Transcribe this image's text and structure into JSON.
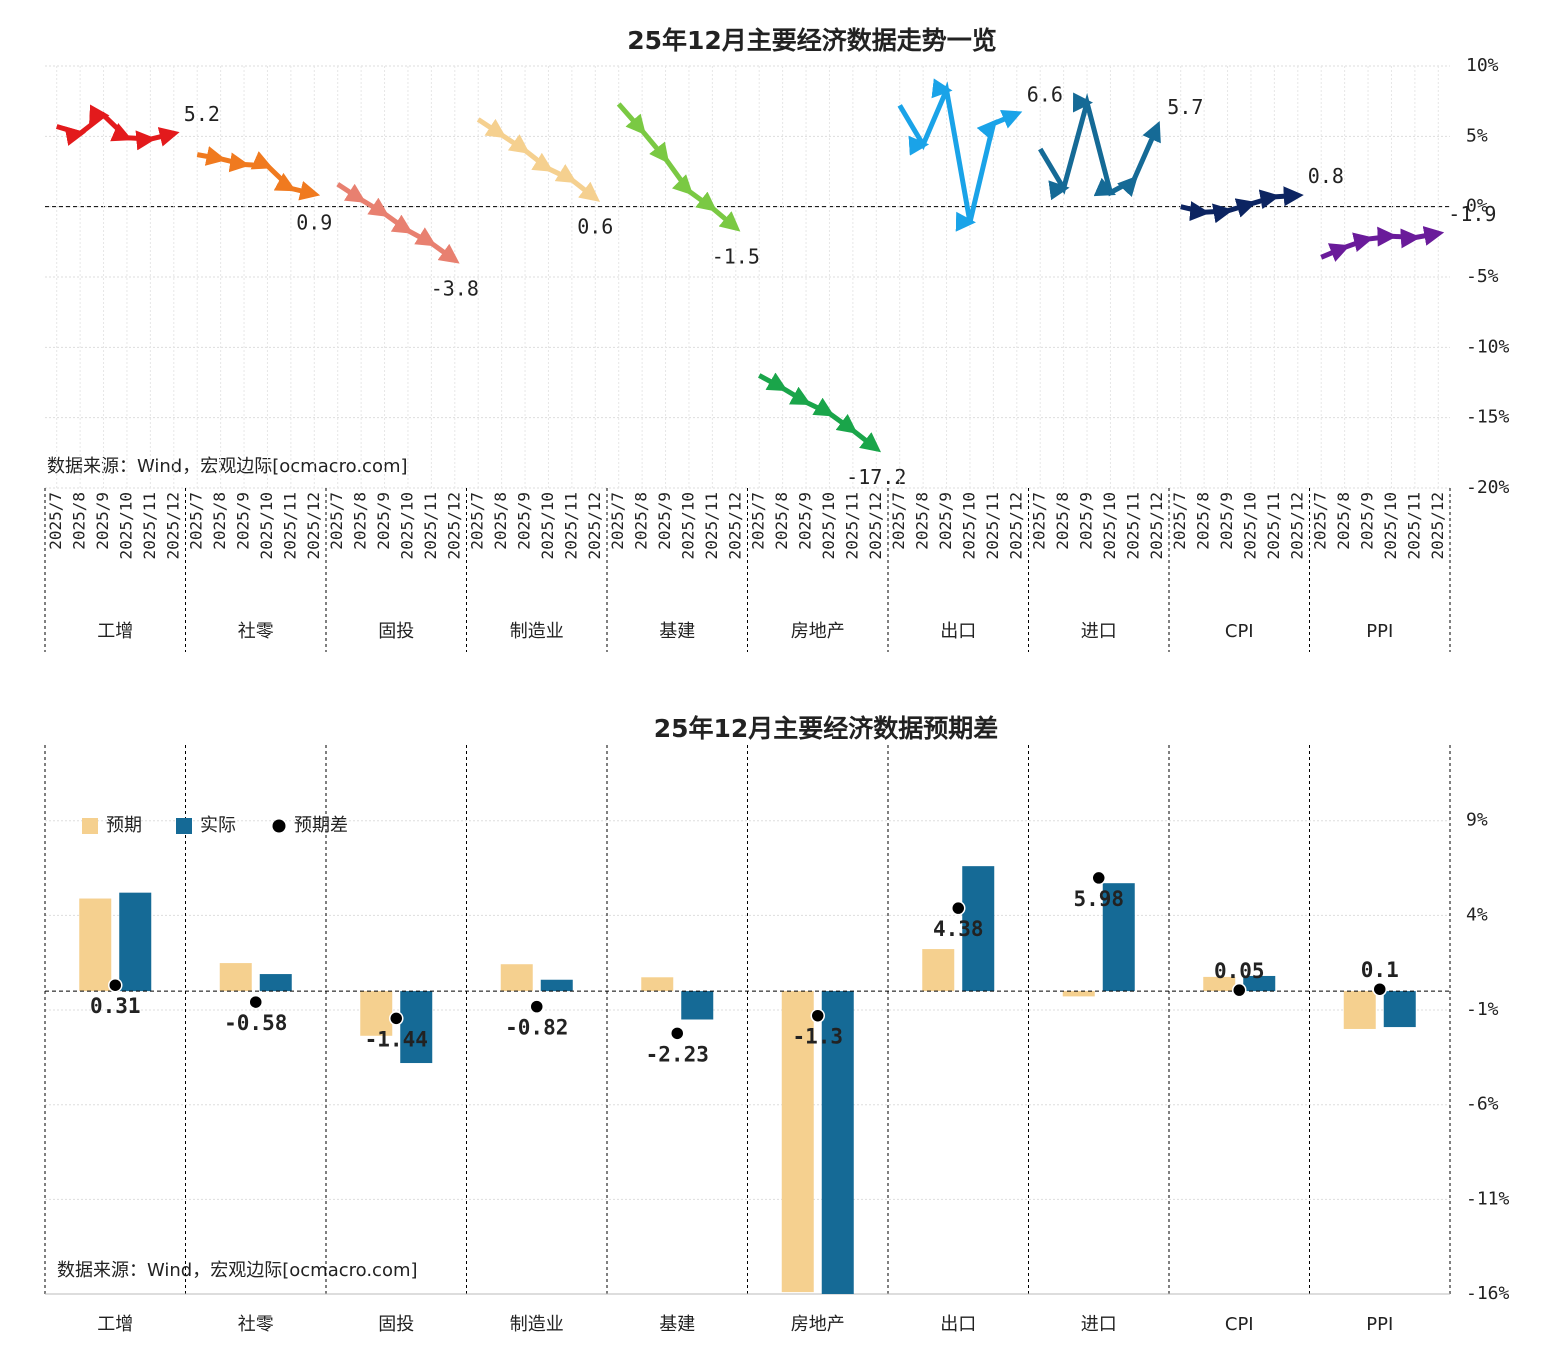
{
  "chart_data": [
    {
      "type": "line",
      "title": "25年12月主要经济数据走势一览",
      "source": "数据来源：Wind，宏观边际[ocmacro.com]",
      "x": [
        "2025/7",
        "2025/8",
        "2025/9",
        "2025/10",
        "2025/11",
        "2025/12"
      ],
      "series": [
        {
          "name": "工增",
          "color": "#e31a1c",
          "values": [
            5.7,
            5.2,
            6.5,
            4.9,
            4.8,
            5.2
          ]
        },
        {
          "name": "社零",
          "color": "#f07a1f",
          "values": [
            3.7,
            3.4,
            3.0,
            2.9,
            1.3,
            0.9
          ]
        },
        {
          "name": "固投",
          "color": "#e88070",
          "values": [
            1.6,
            0.5,
            -0.5,
            -1.7,
            -2.6,
            -3.8
          ]
        },
        {
          "name": "制造业",
          "color": "#f5d08f",
          "values": [
            6.2,
            5.1,
            4.0,
            2.7,
            1.9,
            0.6
          ]
        },
        {
          "name": "基建",
          "color": "#7ac943",
          "values": [
            7.3,
            5.4,
            3.4,
            1.1,
            -0.1,
            -1.5
          ]
        },
        {
          "name": "房地产",
          "color": "#1aa54a",
          "values": [
            -12.0,
            -12.9,
            -13.9,
            -14.7,
            -15.9,
            -17.2
          ]
        },
        {
          "name": "出口",
          "color": "#1aa3e8",
          "values": [
            7.2,
            4.4,
            8.3,
            -1.1,
            5.9,
            6.6
          ]
        },
        {
          "name": "进口",
          "color": "#156a96",
          "values": [
            4.1,
            1.3,
            7.4,
            1.0,
            1.9,
            5.7
          ]
        },
        {
          "name": "CPI",
          "color": "#0c2461",
          "values": [
            0.0,
            -0.4,
            -0.3,
            0.2,
            0.7,
            0.8
          ]
        },
        {
          "name": "PPI",
          "color": "#6a1b9a",
          "values": [
            -3.6,
            -2.9,
            -2.3,
            -2.1,
            -2.2,
            -1.9
          ]
        }
      ],
      "ylim": [
        -20,
        10
      ],
      "yticks": [
        {
          "value": 10,
          "label": "10%"
        },
        {
          "value": 5,
          "label": "5%"
        },
        {
          "value": 0,
          "label": "0%"
        },
        {
          "value": -5,
          "label": "-5%"
        },
        {
          "value": -10,
          "label": "-10%"
        },
        {
          "value": -15,
          "label": "-15%"
        },
        {
          "value": -20,
          "label": "-20%"
        }
      ],
      "grid": true
    },
    {
      "type": "bar",
      "title": "25年12月主要经济数据预期差",
      "source": "数据来源：Wind，宏观边际[ocmacro.com]",
      "categories": [
        "工增",
        "社零",
        "固投",
        "制造业",
        "基建",
        "房地产",
        "出口",
        "进口",
        "CPI",
        "PPI"
      ],
      "series": [
        {
          "name": "预期",
          "color": "#f5d08f",
          "values": [
            4.89,
            1.48,
            -2.36,
            1.42,
            0.73,
            -15.9,
            2.22,
            -0.28,
            0.75,
            -2.0
          ]
        },
        {
          "name": "实际",
          "color": "#156a96",
          "values": [
            5.2,
            0.9,
            -3.8,
            0.6,
            -1.5,
            -17.2,
            6.6,
            5.7,
            0.8,
            -1.9
          ]
        },
        {
          "name": "预期差",
          "color": "#000000",
          "values": [
            0.31,
            -0.58,
            -1.44,
            -0.82,
            -2.23,
            -1.3,
            4.38,
            5.98,
            0.05,
            0.1
          ]
        }
      ],
      "positive_label_color": "#e8141c",
      "negative_label_color": "#12a84a",
      "ylim": [
        -16,
        13
      ],
      "yticks": [
        {
          "value": 9,
          "label": "9%"
        },
        {
          "value": 4,
          "label": "4%"
        },
        {
          "value": -1,
          "label": "-1%"
        },
        {
          "value": -6,
          "label": "-6%"
        },
        {
          "value": -11,
          "label": "-11%"
        },
        {
          "value": -16,
          "label": "-16%"
        }
      ],
      "grid": true
    }
  ]
}
